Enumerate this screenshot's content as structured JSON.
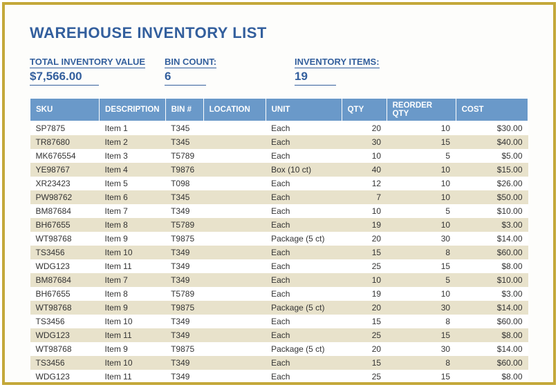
{
  "title": "WAREHOUSE INVENTORY LIST",
  "summary": {
    "total_label": "TOTAL INVENTORY VALUE",
    "total_value": "$7,566.00",
    "bin_label": "BIN COUNT:",
    "bin_value": "6",
    "items_label": "INVENTORY ITEMS:",
    "items_value": "19"
  },
  "columns": [
    "SKU",
    "DESCRIPTION",
    "BIN #",
    "LOCATION",
    "UNIT",
    "QTY",
    "REORDER QTY",
    "COST"
  ],
  "col_classes": [
    "col-sku",
    "col-desc",
    "col-bin",
    "col-loc",
    "col-unit",
    "col-qty",
    "col-reorder",
    "col-cost"
  ],
  "rows": [
    {
      "sku": "SP7875",
      "desc": "Item 1",
      "bin": "T345",
      "loc": "",
      "unit": "Each",
      "qty": "20",
      "reorder": "10",
      "cost": "$30.00",
      "stripe": "odd"
    },
    {
      "sku": "TR87680",
      "desc": "Item 2",
      "bin": "T345",
      "loc": "",
      "unit": "Each",
      "qty": "30",
      "reorder": "15",
      "cost": "$40.00",
      "stripe": "even"
    },
    {
      "sku": "MK676554",
      "desc": "Item 3",
      "bin": "T5789",
      "loc": "",
      "unit": "Each",
      "qty": "10",
      "reorder": "5",
      "cost": "$5.00",
      "stripe": "odd"
    },
    {
      "sku": "YE98767",
      "desc": "Item 4",
      "bin": "T9876",
      "loc": "",
      "unit": "Box (10 ct)",
      "qty": "40",
      "reorder": "10",
      "cost": "$15.00",
      "stripe": "even"
    },
    {
      "sku": "XR23423",
      "desc": "Item 5",
      "bin": "T098",
      "loc": "",
      "unit": "Each",
      "qty": "12",
      "reorder": "10",
      "cost": "$26.00",
      "stripe": "odd"
    },
    {
      "sku": "PW98762",
      "desc": "Item 6",
      "bin": "T345",
      "loc": "",
      "unit": "Each",
      "qty": "7",
      "reorder": "10",
      "cost": "$50.00",
      "stripe": "even"
    },
    {
      "sku": "BM87684",
      "desc": "Item 7",
      "bin": "T349",
      "loc": "",
      "unit": "Each",
      "qty": "10",
      "reorder": "5",
      "cost": "$10.00",
      "stripe": "odd"
    },
    {
      "sku": "BH67655",
      "desc": "Item 8",
      "bin": "T5789",
      "loc": "",
      "unit": "Each",
      "qty": "19",
      "reorder": "10",
      "cost": "$3.00",
      "stripe": "even"
    },
    {
      "sku": "WT98768",
      "desc": "Item 9",
      "bin": "T9875",
      "loc": "",
      "unit": "Package (5 ct)",
      "qty": "20",
      "reorder": "30",
      "cost": "$14.00",
      "stripe": "odd"
    },
    {
      "sku": "TS3456",
      "desc": "Item 10",
      "bin": "T349",
      "loc": "",
      "unit": "Each",
      "qty": "15",
      "reorder": "8",
      "cost": "$60.00",
      "stripe": "even"
    },
    {
      "sku": "WDG123",
      "desc": "Item 11",
      "bin": "T349",
      "loc": "",
      "unit": "Each",
      "qty": "25",
      "reorder": "15",
      "cost": "$8.00",
      "stripe": "odd"
    },
    {
      "sku": "BM87684",
      "desc": "Item 7",
      "bin": "T349",
      "loc": "",
      "unit": "Each",
      "qty": "10",
      "reorder": "5",
      "cost": "$10.00",
      "stripe": "even"
    },
    {
      "sku": "BH67655",
      "desc": "Item 8",
      "bin": "T5789",
      "loc": "",
      "unit": "Each",
      "qty": "19",
      "reorder": "10",
      "cost": "$3.00",
      "stripe": "odd"
    },
    {
      "sku": "WT98768",
      "desc": "Item 9",
      "bin": "T9875",
      "loc": "",
      "unit": "Package (5 ct)",
      "qty": "20",
      "reorder": "30",
      "cost": "$14.00",
      "stripe": "even"
    },
    {
      "sku": "TS3456",
      "desc": "Item 10",
      "bin": "T349",
      "loc": "",
      "unit": "Each",
      "qty": "15",
      "reorder": "8",
      "cost": "$60.00",
      "stripe": "odd"
    },
    {
      "sku": "WDG123",
      "desc": "Item 11",
      "bin": "T349",
      "loc": "",
      "unit": "Each",
      "qty": "25",
      "reorder": "15",
      "cost": "$8.00",
      "stripe": "even"
    },
    {
      "sku": "WT98768",
      "desc": "Item 9",
      "bin": "T9875",
      "loc": "",
      "unit": "Package (5 ct)",
      "qty": "20",
      "reorder": "30",
      "cost": "$14.00",
      "stripe": "odd"
    },
    {
      "sku": "TS3456",
      "desc": "Item 10",
      "bin": "T349",
      "loc": "",
      "unit": "Each",
      "qty": "15",
      "reorder": "8",
      "cost": "$60.00",
      "stripe": "even"
    },
    {
      "sku": "WDG123",
      "desc": "Item 11",
      "bin": "T349",
      "loc": "",
      "unit": "Each",
      "qty": "25",
      "reorder": "15",
      "cost": "$8.00",
      "stripe": "odd"
    }
  ],
  "colors": {
    "border": "#c4a83a",
    "accent": "#335f9d",
    "header_bg": "#6a99c9",
    "stripe": "#e8e2cb",
    "background": "#ffffff"
  }
}
